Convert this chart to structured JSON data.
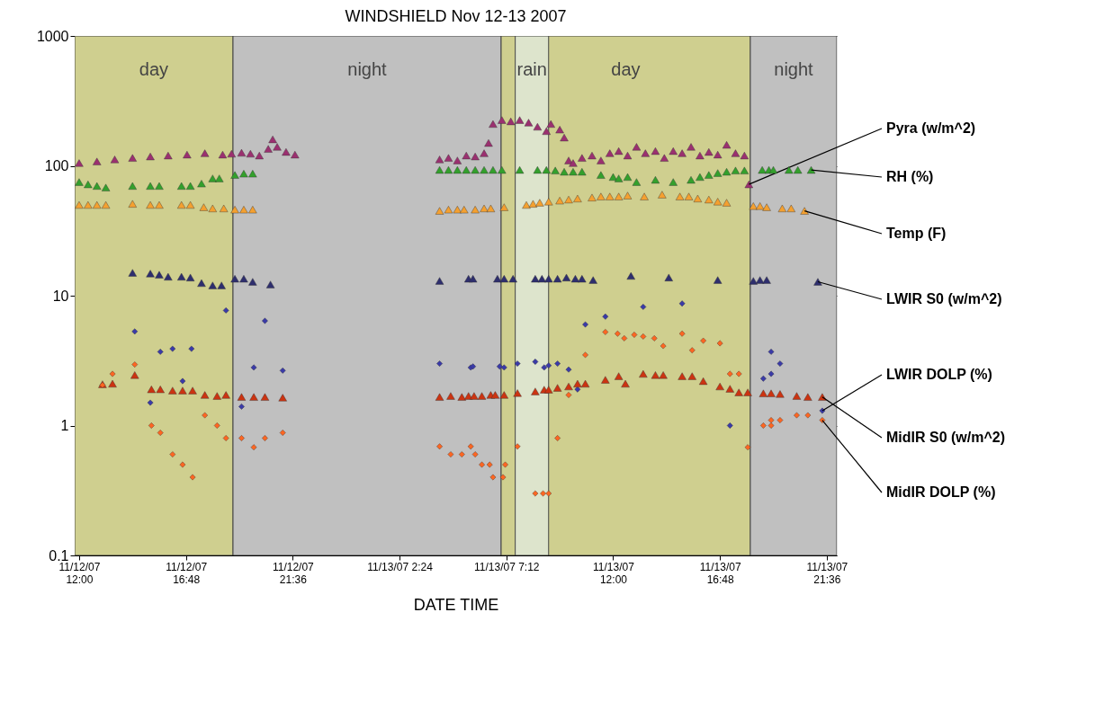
{
  "chart_data": {
    "type": "scatter",
    "title": "WINDSHIELD Nov 12-13 2007",
    "xlabel": "DATE TIME",
    "log": "y",
    "grid": "y",
    "legend": false,
    "xlim": [
      "2007-11-12T11:48",
      "2007-11-13T22:03"
    ],
    "xticks": [
      {
        "value": "2007-11-12T12:00",
        "label": "11/12/07\n12:00"
      },
      {
        "value": "2007-11-12T16:48",
        "label": "11/12/07\n16:48"
      },
      {
        "value": "2007-11-12T21:36",
        "label": "11/12/07\n21:36"
      },
      {
        "value": "2007-11-13T02:24",
        "label": "11/13/07 2:24"
      },
      {
        "value": "2007-11-13T07:12",
        "label": "11/13/07 7:12"
      },
      {
        "value": "2007-11-13T12:00",
        "label": "11/13/07\n12:00"
      },
      {
        "value": "2007-11-13T16:48",
        "label": "11/13/07\n16:48"
      },
      {
        "value": "2007-11-13T21:36",
        "label": "11/13/07\n21:36"
      }
    ],
    "ylim": [
      0.1,
      1000
    ],
    "yticks": [
      0.1,
      1,
      10,
      100,
      1000
    ],
    "bands": [
      {
        "axis": "x",
        "from": "2007-11-12T11:48",
        "to": "2007-11-12T18:55",
        "label": "day",
        "color": "#cfcf8f"
      },
      {
        "axis": "x",
        "from": "2007-11-12T18:55",
        "to": "2007-11-13T06:58",
        "label": "night",
        "color": "#c0c0c0"
      },
      {
        "axis": "x",
        "from": "2007-11-13T06:58",
        "to": "2007-11-13T18:10",
        "label": "day",
        "color": "#cfcf8f"
      },
      {
        "axis": "x",
        "from": "2007-11-13T07:36",
        "to": "2007-11-13T09:06",
        "label": "rain",
        "color": "#dde4cc"
      },
      {
        "axis": "x",
        "from": "2007-11-13T18:10",
        "to": "2007-11-13T22:03",
        "label": "night",
        "color": "#c0c0c0"
      }
    ],
    "series": [
      {
        "name": "Pyra (w/m^2)",
        "color": "#9b3070",
        "marker": "triangle",
        "x": [
          "2007-11-12T12:00",
          "2007-11-12T12:48",
          "2007-11-12T13:36",
          "2007-11-12T14:24",
          "2007-11-12T15:12",
          "2007-11-12T16:00",
          "2007-11-12T16:51",
          "2007-11-12T17:39",
          "2007-11-12T18:27",
          "2007-11-12T18:51",
          "2007-11-12T19:18",
          "2007-11-12T19:42",
          "2007-11-12T20:06",
          "2007-11-12T20:30",
          "2007-11-12T20:42",
          "2007-11-12T20:54",
          "2007-11-12T21:18",
          "2007-11-12T21:42",
          "2007-11-13T04:12",
          "2007-11-13T04:36",
          "2007-11-13T05:00",
          "2007-11-13T05:24",
          "2007-11-13T05:48",
          "2007-11-13T06:12",
          "2007-11-13T06:24",
          "2007-11-13T06:36",
          "2007-11-13T07:00",
          "2007-11-13T07:24",
          "2007-11-13T07:48",
          "2007-11-13T08:12",
          "2007-11-13T08:36",
          "2007-11-13T09:00",
          "2007-11-13T09:12",
          "2007-11-13T09:36",
          "2007-11-13T09:48",
          "2007-11-13T10:00",
          "2007-11-13T10:12",
          "2007-11-13T10:36",
          "2007-11-13T11:03",
          "2007-11-13T11:27",
          "2007-11-13T11:51",
          "2007-11-13T12:15",
          "2007-11-13T12:39",
          "2007-11-13T13:03",
          "2007-11-13T13:27",
          "2007-11-13T13:54",
          "2007-11-13T14:18",
          "2007-11-13T14:42",
          "2007-11-13T15:06",
          "2007-11-13T15:30",
          "2007-11-13T15:54",
          "2007-11-13T16:18",
          "2007-11-13T16:42",
          "2007-11-13T17:06",
          "2007-11-13T17:30",
          "2007-11-13T17:54",
          "2007-11-13T18:06"
        ],
        "values": [
          105,
          108,
          112,
          115,
          118,
          120,
          122,
          125,
          122,
          124,
          126,
          124,
          120,
          135,
          160,
          140,
          128,
          122,
          112,
          115,
          110,
          120,
          118,
          125,
          150,
          210,
          225,
          220,
          225,
          215,
          200,
          185,
          210,
          190,
          165,
          110,
          105,
          115,
          120,
          110,
          125,
          130,
          120,
          140,
          125,
          130,
          115,
          130,
          125,
          140,
          120,
          128,
          122,
          145,
          125,
          120,
          72
        ]
      },
      {
        "name": "RH (%)",
        "color": "#33a02c",
        "marker": "triangle",
        "x": [
          "2007-11-12T12:00",
          "2007-11-12T12:24",
          "2007-11-12T12:48",
          "2007-11-12T13:12",
          "2007-11-12T14:24",
          "2007-11-12T15:12",
          "2007-11-12T15:36",
          "2007-11-12T16:36",
          "2007-11-12T17:00",
          "2007-11-12T17:30",
          "2007-11-12T18:00",
          "2007-11-12T18:18",
          "2007-11-12T19:00",
          "2007-11-12T19:24",
          "2007-11-12T19:48",
          "2007-11-13T04:12",
          "2007-11-13T04:36",
          "2007-11-13T05:00",
          "2007-11-13T05:24",
          "2007-11-13T05:48",
          "2007-11-13T06:12",
          "2007-11-13T06:36",
          "2007-11-13T07:00",
          "2007-11-13T07:48",
          "2007-11-13T08:36",
          "2007-11-13T09:00",
          "2007-11-13T09:24",
          "2007-11-13T09:48",
          "2007-11-13T10:12",
          "2007-11-13T10:36",
          "2007-11-13T11:27",
          "2007-11-13T12:00",
          "2007-11-13T12:15",
          "2007-11-13T12:39",
          "2007-11-13T13:03",
          "2007-11-13T13:54",
          "2007-11-13T14:42",
          "2007-11-13T15:30",
          "2007-11-13T15:54",
          "2007-11-13T16:18",
          "2007-11-13T16:42",
          "2007-11-13T17:06",
          "2007-11-13T17:30",
          "2007-11-13T17:54",
          "2007-11-13T18:42",
          "2007-11-13T19:00",
          "2007-11-13T19:12",
          "2007-11-13T19:54",
          "2007-11-13T20:18",
          "2007-11-13T20:54"
        ],
        "values": [
          75,
          72,
          70,
          68,
          70,
          70,
          70,
          70,
          70,
          73,
          80,
          80,
          85,
          87,
          87,
          93,
          93,
          93,
          93,
          93,
          93,
          93,
          93,
          93,
          93,
          93,
          92,
          90,
          90,
          90,
          85,
          82,
          80,
          82,
          75,
          78,
          75,
          78,
          82,
          85,
          88,
          90,
          92,
          92,
          93,
          93,
          93,
          93,
          93,
          93
        ]
      },
      {
        "name": "Temp (F)",
        "color": "#f4a030",
        "marker": "triangle",
        "x": [
          "2007-11-12T12:00",
          "2007-11-12T12:24",
          "2007-11-12T12:48",
          "2007-11-12T13:12",
          "2007-11-12T14:24",
          "2007-11-12T15:12",
          "2007-11-12T15:36",
          "2007-11-12T16:36",
          "2007-11-12T17:00",
          "2007-11-12T17:36",
          "2007-11-12T18:00",
          "2007-11-12T18:30",
          "2007-11-12T19:00",
          "2007-11-12T19:24",
          "2007-11-12T19:48",
          "2007-11-13T04:12",
          "2007-11-13T04:36",
          "2007-11-13T05:00",
          "2007-11-13T05:18",
          "2007-11-13T05:48",
          "2007-11-13T06:12",
          "2007-11-13T06:30",
          "2007-11-13T07:06",
          "2007-11-13T08:06",
          "2007-11-13T08:24",
          "2007-11-13T08:42",
          "2007-11-13T09:06",
          "2007-11-13T09:36",
          "2007-11-13T10:00",
          "2007-11-13T10:24",
          "2007-11-13T11:03",
          "2007-11-13T11:27",
          "2007-11-13T11:51",
          "2007-11-13T12:15",
          "2007-11-13T12:39",
          "2007-11-13T13:24",
          "2007-11-13T14:12",
          "2007-11-13T15:00",
          "2007-11-13T15:24",
          "2007-11-13T15:48",
          "2007-11-13T16:18",
          "2007-11-13T16:42",
          "2007-11-13T17:06",
          "2007-11-13T18:18",
          "2007-11-13T18:36",
          "2007-11-13T18:54",
          "2007-11-13T19:36",
          "2007-11-13T20:00",
          "2007-11-13T20:36"
        ],
        "values": [
          50,
          50,
          50,
          50,
          51,
          50,
          50,
          50,
          50,
          48,
          47,
          47,
          46,
          46,
          46,
          45,
          46,
          46,
          46,
          46,
          47,
          47,
          48,
          50,
          51,
          52,
          53,
          54,
          55,
          56,
          57,
          58,
          58,
          58,
          59,
          58,
          60,
          58,
          58,
          56,
          55,
          53,
          52,
          49,
          49,
          48,
          47,
          47,
          45
        ]
      },
      {
        "name": "LWIR S0 (w/m^2)",
        "color": "#2e2e6e",
        "marker": "triangle",
        "x": [
          "2007-11-12T14:24",
          "2007-11-12T15:12",
          "2007-11-12T15:36",
          "2007-11-12T16:00",
          "2007-11-12T16:36",
          "2007-11-12T17:00",
          "2007-11-12T17:30",
          "2007-11-12T18:00",
          "2007-11-12T18:24",
          "2007-11-12T19:00",
          "2007-11-12T19:24",
          "2007-11-12T19:48",
          "2007-11-12T20:36",
          "2007-11-13T04:12",
          "2007-11-13T05:30",
          "2007-11-13T05:42",
          "2007-11-13T06:48",
          "2007-11-13T07:06",
          "2007-11-13T07:30",
          "2007-11-13T08:30",
          "2007-11-13T08:48",
          "2007-11-13T09:06",
          "2007-11-13T09:30",
          "2007-11-13T09:54",
          "2007-11-13T10:18",
          "2007-11-13T10:36",
          "2007-11-13T11:06",
          "2007-11-13T12:48",
          "2007-11-13T14:30",
          "2007-11-13T16:42",
          "2007-11-13T18:18",
          "2007-11-13T18:36",
          "2007-11-13T18:54",
          "2007-11-13T21:12"
        ],
        "values": [
          15,
          14.8,
          14.5,
          14,
          14,
          13.8,
          12.5,
          12,
          12,
          13.5,
          13.5,
          12.8,
          12.2,
          13,
          13.5,
          13.5,
          13.5,
          13.5,
          13.5,
          13.5,
          13.5,
          13.5,
          13.5,
          13.8,
          13.5,
          13.5,
          13.2,
          14.2,
          13.8,
          13.2,
          13,
          13.2,
          13.2,
          12.8
        ]
      },
      {
        "name": "LWIR DOLP (%)",
        "color": "#3a3aa8",
        "marker": "diamond",
        "x": [
          "2007-11-12T14:30",
          "2007-11-12T15:12",
          "2007-11-12T15:39",
          "2007-11-12T16:12",
          "2007-11-12T16:39",
          "2007-11-12T17:03",
          "2007-11-12T18:36",
          "2007-11-12T19:18",
          "2007-11-12T19:51",
          "2007-11-12T20:21",
          "2007-11-12T21:09",
          "2007-11-13T04:12",
          "2007-11-13T05:36",
          "2007-11-13T05:42",
          "2007-11-13T06:54",
          "2007-11-13T07:06",
          "2007-11-13T07:42",
          "2007-11-13T08:30",
          "2007-11-13T08:54",
          "2007-11-13T09:06",
          "2007-11-13T09:30",
          "2007-11-13T10:00",
          "2007-11-13T10:24",
          "2007-11-13T10:45",
          "2007-11-13T11:39",
          "2007-11-13T13:21",
          "2007-11-13T15:06",
          "2007-11-13T17:15",
          "2007-11-13T18:45",
          "2007-11-13T19:06",
          "2007-11-13T19:06",
          "2007-11-13T19:30",
          "2007-11-13T21:24"
        ],
        "values": [
          5.3,
          1.5,
          3.7,
          3.9,
          2.2,
          3.9,
          7.7,
          1.4,
          2.8,
          6.4,
          2.65,
          3.0,
          2.8,
          2.85,
          2.85,
          2.8,
          3.0,
          3.1,
          2.8,
          2.9,
          3.0,
          2.7,
          1.9,
          6.0,
          6.9,
          8.2,
          8.7,
          1.0,
          2.3,
          3.7,
          2.5,
          3.0,
          1.3
        ]
      },
      {
        "name": "MidIR S0 (w/m^2)",
        "color": "#cc3311",
        "marker": "triangle",
        "x": [
          "2007-11-12T13:03",
          "2007-11-12T13:30",
          "2007-11-12T14:30",
          "2007-11-12T15:15",
          "2007-11-12T15:39",
          "2007-11-12T16:12",
          "2007-11-12T16:39",
          "2007-11-12T17:06",
          "2007-11-12T17:39",
          "2007-11-12T18:12",
          "2007-11-12T18:36",
          "2007-11-12T19:18",
          "2007-11-12T19:51",
          "2007-11-12T20:21",
          "2007-11-12T21:09",
          "2007-11-13T04:12",
          "2007-11-13T04:42",
          "2007-11-13T05:12",
          "2007-11-13T05:30",
          "2007-11-13T05:45",
          "2007-11-13T06:06",
          "2007-11-13T06:30",
          "2007-11-13T06:42",
          "2007-11-13T07:06",
          "2007-11-13T07:42",
          "2007-11-13T08:30",
          "2007-11-13T08:54",
          "2007-11-13T09:06",
          "2007-11-13T09:30",
          "2007-11-13T10:00",
          "2007-11-13T10:24",
          "2007-11-13T10:45",
          "2007-11-13T11:39",
          "2007-11-13T12:15",
          "2007-11-13T12:33",
          "2007-11-13T13:21",
          "2007-11-13T13:54",
          "2007-11-13T14:15",
          "2007-11-13T15:06",
          "2007-11-13T15:33",
          "2007-11-13T16:03",
          "2007-11-13T16:48",
          "2007-11-13T17:15",
          "2007-11-13T17:39",
          "2007-11-13T18:03",
          "2007-11-13T18:45",
          "2007-11-13T19:06",
          "2007-11-13T19:30",
          "2007-11-13T20:15",
          "2007-11-13T20:45",
          "2007-11-13T21:24"
        ],
        "values": [
          2.08,
          2.1,
          2.45,
          1.9,
          1.9,
          1.86,
          1.86,
          1.86,
          1.72,
          1.69,
          1.72,
          1.66,
          1.66,
          1.66,
          1.64,
          1.66,
          1.69,
          1.66,
          1.69,
          1.69,
          1.69,
          1.72,
          1.72,
          1.72,
          1.78,
          1.83,
          1.89,
          1.89,
          1.95,
          2.0,
          2.1,
          2.1,
          2.25,
          2.4,
          2.1,
          2.5,
          2.45,
          2.45,
          2.4,
          2.4,
          2.2,
          2.0,
          1.92,
          1.8,
          1.8,
          1.77,
          1.77,
          1.75,
          1.69,
          1.66,
          1.66
        ]
      },
      {
        "name": "MidIR DOLP (%)",
        "color": "#ff6622",
        "marker": "diamond",
        "x": [
          "2007-11-12T13:03",
          "2007-11-12T13:30",
          "2007-11-12T14:30",
          "2007-11-12T15:15",
          "2007-11-12T15:39",
          "2007-11-12T16:12",
          "2007-11-12T16:39",
          "2007-11-12T17:06",
          "2007-11-12T17:39",
          "2007-11-12T18:12",
          "2007-11-12T18:36",
          "2007-11-12T19:18",
          "2007-11-12T19:51",
          "2007-11-12T20:21",
          "2007-11-12T21:09",
          "2007-11-13T04:12",
          "2007-11-13T04:42",
          "2007-11-13T05:12",
          "2007-11-13T05:36",
          "2007-11-13T05:48",
          "2007-11-13T06:06",
          "2007-11-13T06:27",
          "2007-11-13T06:36",
          "2007-11-13T07:03",
          "2007-11-13T07:09",
          "2007-11-13T07:42",
          "2007-11-13T08:30",
          "2007-11-13T08:51",
          "2007-11-13T09:06",
          "2007-11-13T09:30",
          "2007-11-13T10:00",
          "2007-11-13T10:45",
          "2007-11-13T11:39",
          "2007-11-13T12:12",
          "2007-11-13T12:30",
          "2007-11-13T12:57",
          "2007-11-13T13:21",
          "2007-11-13T13:51",
          "2007-11-13T14:15",
          "2007-11-13T15:06",
          "2007-11-13T15:33",
          "2007-11-13T16:03",
          "2007-11-13T16:48",
          "2007-11-13T17:15",
          "2007-11-13T17:39",
          "2007-11-13T18:03",
          "2007-11-13T18:45",
          "2007-11-13T19:06",
          "2007-11-13T19:06",
          "2007-11-13T19:30",
          "2007-11-13T20:15",
          "2007-11-13T20:45",
          "2007-11-13T21:24"
        ],
        "values": [
          2.05,
          2.5,
          2.95,
          1.0,
          0.88,
          0.6,
          0.5,
          0.4,
          1.2,
          1.0,
          0.8,
          0.8,
          0.68,
          0.8,
          0.88,
          0.69,
          0.6,
          0.6,
          0.69,
          0.6,
          0.5,
          0.5,
          0.4,
          0.4,
          0.5,
          0.69,
          0.3,
          0.3,
          0.3,
          0.8,
          1.72,
          3.5,
          5.25,
          5.1,
          4.7,
          5.0,
          4.85,
          4.7,
          4.1,
          5.1,
          3.8,
          4.5,
          4.3,
          2.5,
          2.5,
          0.68,
          1.0,
          1.0,
          1.1,
          1.1,
          1.2,
          1.2,
          1.1
        ]
      }
    ]
  }
}
